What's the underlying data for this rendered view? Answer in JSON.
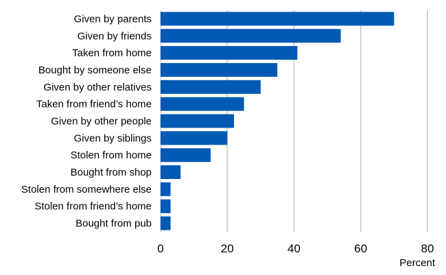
{
  "chart_data": {
    "type": "bar",
    "orientation": "horizontal",
    "categories": [
      "Given by parents",
      "Given by friends",
      "Taken from home",
      "Bought by someone else",
      "Given by other relatives",
      "Taken from friend’s home",
      "Given by other people",
      "Given by siblings",
      "Stolen from home",
      "Bought from shop",
      "Stolen from somewhere else",
      "Stolen from friend’s home",
      "Bought from pub"
    ],
    "values": [
      70,
      54,
      41,
      35,
      30,
      25,
      22,
      20,
      15,
      6,
      3,
      3,
      3
    ],
    "xlabel": "Percent",
    "xlim": [
      0,
      80
    ],
    "xticks": [
      "0",
      "20",
      "40",
      "60",
      "80"
    ],
    "grid": "vertical",
    "legend": "none",
    "colors": {
      "bar": "#0059b3"
    }
  }
}
